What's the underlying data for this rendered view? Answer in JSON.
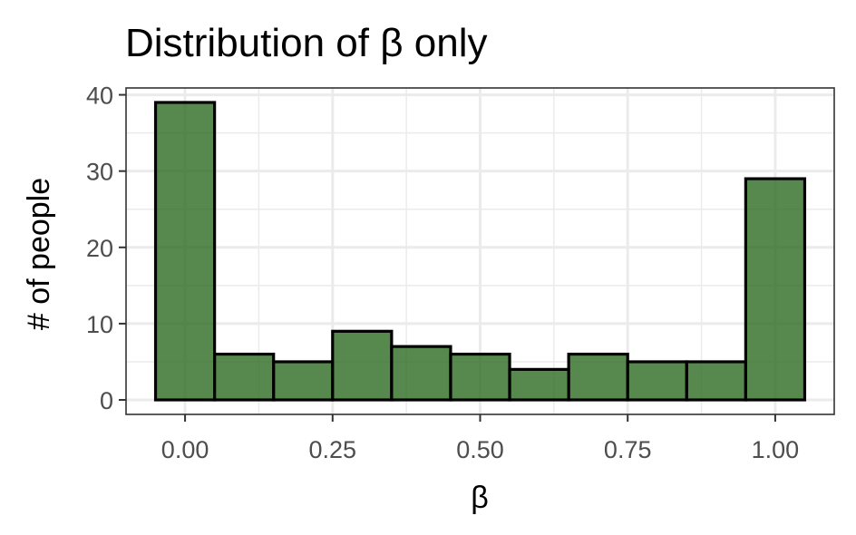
{
  "chart_data": {
    "type": "bar",
    "title": "Distribution of β only",
    "xlabel": "β",
    "ylabel": "# of people",
    "bin_centers": [
      0.0,
      0.1,
      0.2,
      0.3,
      0.4,
      0.5,
      0.6,
      0.7,
      0.8,
      0.9,
      1.0
    ],
    "bin_width": 0.1,
    "values": [
      39,
      6,
      5,
      9,
      7,
      6,
      4,
      6,
      5,
      5,
      29
    ],
    "xlim": [
      -0.1,
      1.1
    ],
    "ylim": [
      -1.9,
      40.9
    ],
    "x_ticks": [
      0.0,
      0.25,
      0.5,
      0.75,
      1.0
    ],
    "x_tick_labels": [
      "0.00",
      "0.25",
      "0.50",
      "0.75",
      "1.00"
    ],
    "y_ticks": [
      0,
      10,
      20,
      30,
      40
    ],
    "y_tick_labels": [
      "0",
      "10",
      "20",
      "30",
      "40"
    ],
    "grid": true,
    "bar_fill": "#2d6a22",
    "bar_opacity": 0.8,
    "bar_outline": "#000000"
  }
}
